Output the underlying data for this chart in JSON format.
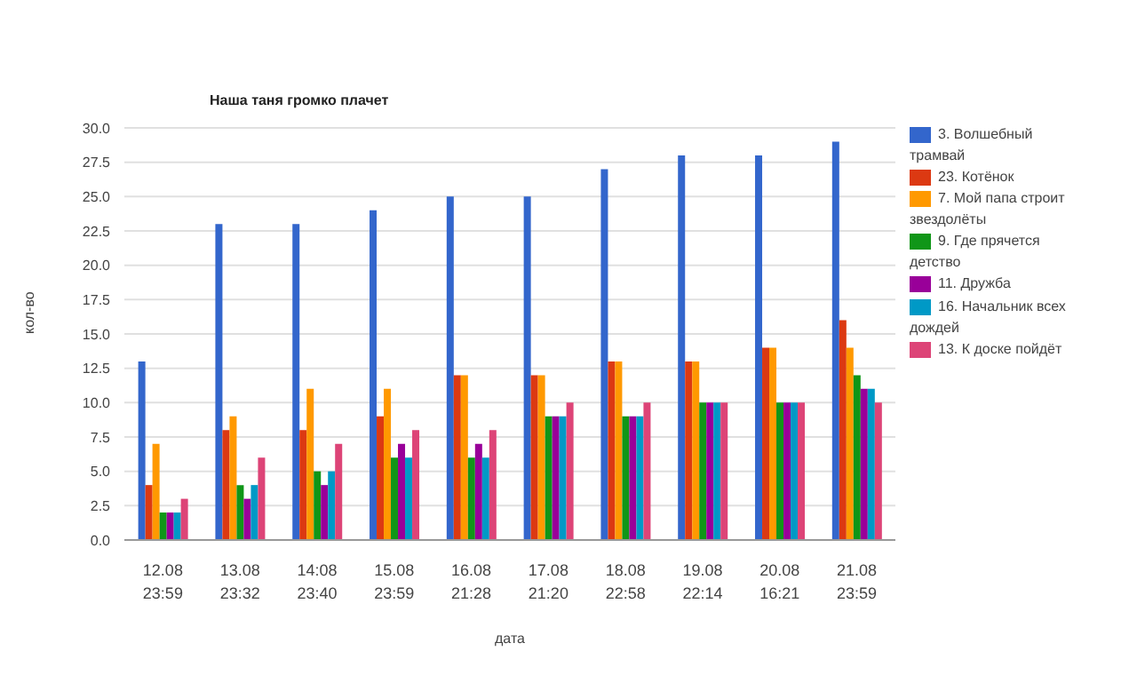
{
  "chart_data": {
    "type": "bar",
    "title": "Наша таня громко плачет",
    "xlabel": "дата",
    "ylabel": "кол-во",
    "categories": [
      "12.08\n23:59",
      "13.08\n23:32",
      "14:08\n23:40",
      "15.08\n23:59",
      "16.08\n21:28",
      "17.08\n21:20",
      "18.08\n22:58",
      "19.08\n22:14",
      "20.08\n16:21",
      "21.08\n23:59"
    ],
    "series": [
      {
        "name": "3. Волшебный трамвай",
        "color": "#3366cc",
        "values": [
          13,
          23,
          23,
          24,
          25,
          25,
          27,
          28,
          28,
          29
        ]
      },
      {
        "name": "23. Котёнок",
        "color": "#dc3912",
        "values": [
          4,
          8,
          8,
          9,
          12,
          12,
          13,
          13,
          14,
          16
        ]
      },
      {
        "name": "7. Мой папа строит звездолёты",
        "color": "#ff9900",
        "values": [
          7,
          9,
          11,
          11,
          12,
          12,
          13,
          13,
          14,
          14
        ]
      },
      {
        "name": "9. Где прячется детство",
        "color": "#109618",
        "values": [
          2,
          4,
          5,
          6,
          6,
          9,
          9,
          10,
          10,
          12
        ]
      },
      {
        "name": "11. Дружба",
        "color": "#990099",
        "values": [
          2,
          3,
          4,
          7,
          7,
          9,
          9,
          10,
          10,
          11
        ]
      },
      {
        "name": "16. Начальник всех дождей",
        "color": "#0099c6",
        "values": [
          2,
          4,
          5,
          6,
          6,
          9,
          9,
          10,
          10,
          11
        ]
      },
      {
        "name": "13. К доске пойдёт",
        "color": "#dd4477",
        "values": [
          3,
          6,
          7,
          8,
          8,
          10,
          10,
          10,
          10,
          10
        ]
      }
    ],
    "ylim": [
      0,
      30
    ],
    "yticks": [
      {
        "value": 0,
        "label": "0.0"
      },
      2.5,
      {
        "value": 5,
        "label": "5.0"
      },
      7.5,
      {
        "value": 10,
        "label": "10.0"
      },
      12.5,
      {
        "value": 15,
        "label": "15.0"
      },
      17.5,
      {
        "value": 20,
        "label": "20.0"
      },
      22.5,
      {
        "value": 25,
        "label": "25.0"
      },
      27.5,
      {
        "value": 30,
        "label": "30.0"
      }
    ],
    "grid": "y",
    "legend": "right"
  }
}
